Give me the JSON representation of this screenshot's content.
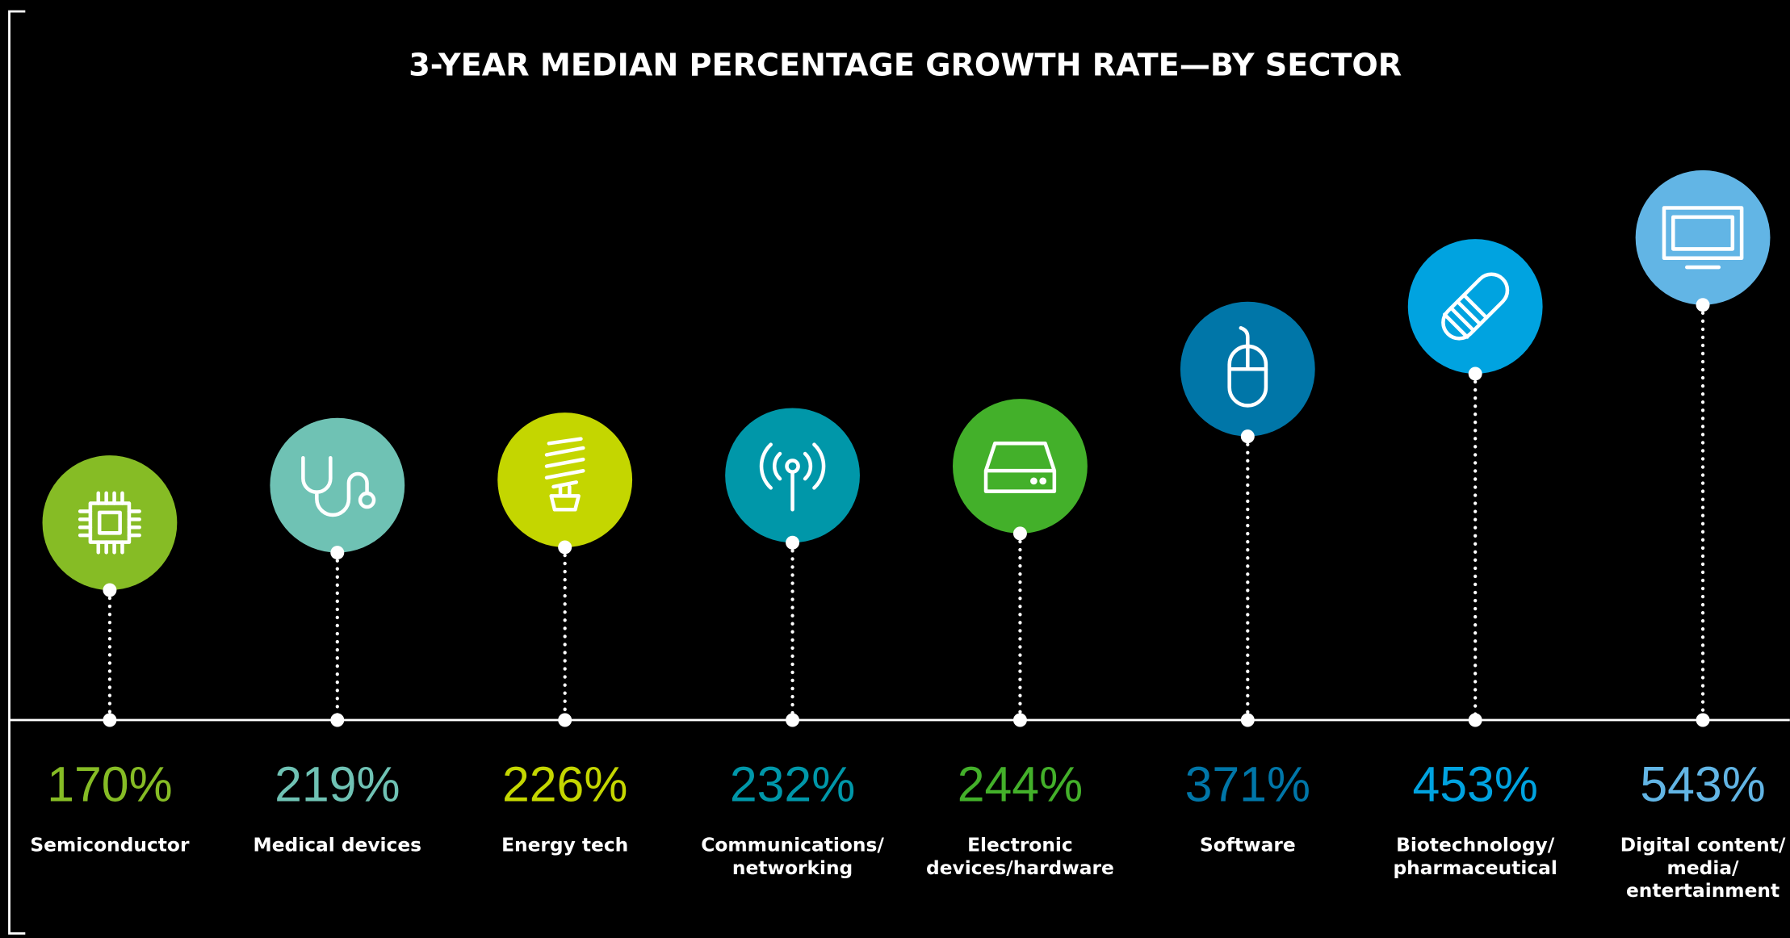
{
  "chart_data": {
    "type": "lollipop",
    "title": "3-YEAR MEDIAN PERCENTAGE GROWTH RATE—BY SECTOR",
    "categories": [
      [
        "Semiconductor"
      ],
      [
        "Medical devices"
      ],
      [
        "Energy tech"
      ],
      [
        "Communications/",
        "networking"
      ],
      [
        "Electronic",
        "devices/hardware"
      ],
      [
        "Software"
      ],
      [
        "Biotechnology/",
        "pharmaceutical"
      ],
      [
        "Digital content/",
        "media/",
        "entertainment"
      ]
    ],
    "values": [
      170,
      219,
      226,
      232,
      244,
      371,
      453,
      543
    ],
    "value_labels": [
      "170%",
      "219%",
      "226%",
      "232%",
      "244%",
      "371%",
      "453%",
      "543%"
    ],
    "colors": [
      "#86bc25",
      "#6fc2b4",
      "#c4d600",
      "#0097a9",
      "#43b02a",
      "#0076a8",
      "#00a3e0",
      "#62b5e5"
    ]
  }
}
